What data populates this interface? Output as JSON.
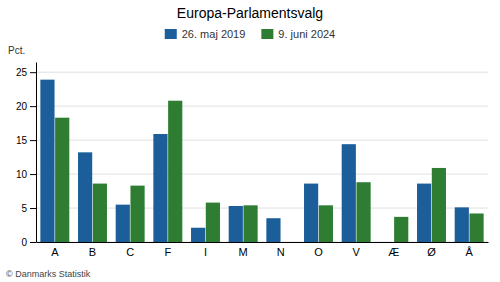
{
  "chart_data": {
    "type": "bar",
    "title": "Europa-Parlamentsvalg",
    "ylabel": "Pct.",
    "footer": "© Danmarks Statistik",
    "categories": [
      "A",
      "B",
      "C",
      "F",
      "I",
      "M",
      "N",
      "O",
      "V",
      "Æ",
      "Ø",
      "Å"
    ],
    "series": [
      {
        "name": "26. maj 2019",
        "color": "#1B5E9A",
        "values": [
          23.9,
          13.2,
          5.5,
          15.9,
          2.1,
          5.3,
          3.5,
          8.6,
          14.4,
          0.0,
          8.6,
          5.1
        ]
      },
      {
        "name": "9. juni 2024",
        "color": "#2E7D32",
        "values": [
          18.3,
          8.6,
          8.3,
          20.8,
          5.8,
          5.4,
          0.0,
          5.4,
          8.8,
          3.7,
          10.9,
          4.2
        ]
      }
    ],
    "ylim": [
      0,
      26.5
    ],
    "yticks": [
      0,
      5,
      10,
      15,
      20,
      25
    ],
    "grid": true,
    "legend": "top"
  }
}
